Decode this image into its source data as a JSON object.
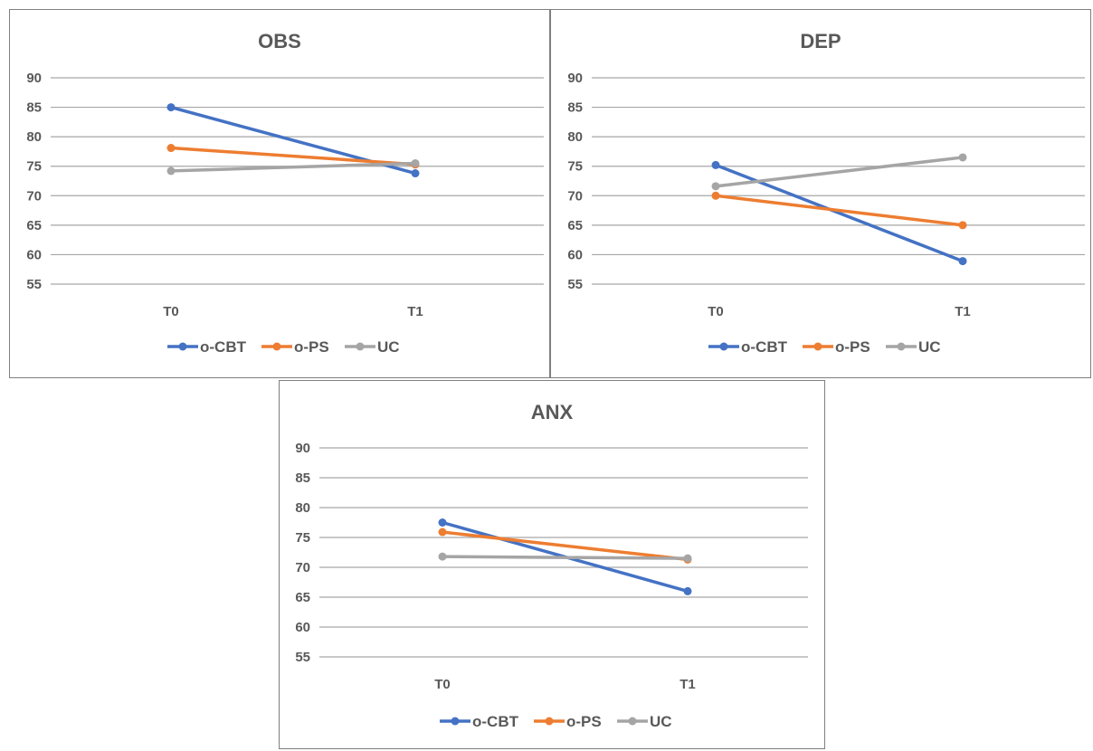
{
  "chart_data": [
    {
      "type": "line",
      "title": "OBS",
      "categories": [
        "T0",
        "T1"
      ],
      "ylim": [
        55,
        90
      ],
      "yticks": [
        55,
        60,
        65,
        70,
        75,
        80,
        85,
        90
      ],
      "grid": true,
      "legend_position": "bottom",
      "series": [
        {
          "name": "o-CBT",
          "color": "#4472c4",
          "values": [
            85,
            73.8
          ]
        },
        {
          "name": "o-PS",
          "color": "#ed7d31",
          "values": [
            78.1,
            75.3
          ]
        },
        {
          "name": "UC",
          "color": "#a5a5a5",
          "values": [
            74.2,
            75.5
          ]
        }
      ]
    },
    {
      "type": "line",
      "title": "DEP",
      "categories": [
        "T0",
        "T1"
      ],
      "ylim": [
        55,
        90
      ],
      "yticks": [
        55,
        60,
        65,
        70,
        75,
        80,
        85,
        90
      ],
      "grid": true,
      "legend_position": "bottom",
      "series": [
        {
          "name": "o-CBT",
          "color": "#4472c4",
          "values": [
            75.2,
            58.9
          ]
        },
        {
          "name": "o-PS",
          "color": "#ed7d31",
          "values": [
            70,
            65
          ]
        },
        {
          "name": "UC",
          "color": "#a5a5a5",
          "values": [
            71.6,
            76.5
          ]
        }
      ]
    },
    {
      "type": "line",
      "title": "ANX",
      "categories": [
        "T0",
        "T1"
      ],
      "ylim": [
        55,
        90
      ],
      "yticks": [
        55,
        60,
        65,
        70,
        75,
        80,
        85,
        90
      ],
      "grid": true,
      "legend_position": "bottom",
      "series": [
        {
          "name": "o-CBT",
          "color": "#4472c4",
          "values": [
            77.5,
            66
          ]
        },
        {
          "name": "o-PS",
          "color": "#ed7d31",
          "values": [
            75.9,
            71.3
          ]
        },
        {
          "name": "UC",
          "color": "#a5a5a5",
          "values": [
            71.8,
            71.5
          ]
        }
      ]
    }
  ]
}
